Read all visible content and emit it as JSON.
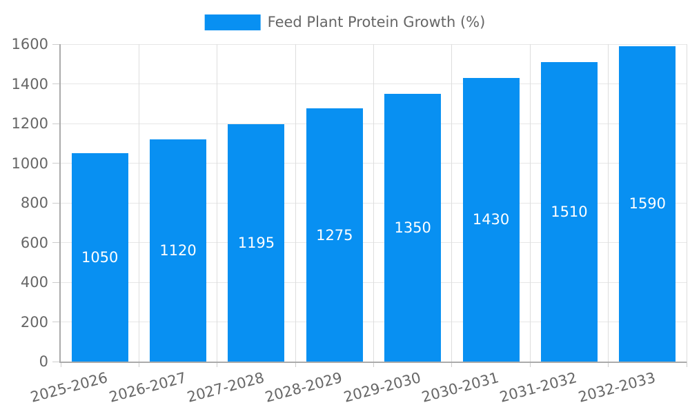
{
  "chart_data": {
    "type": "bar",
    "title": "",
    "legend": {
      "label": "Feed Plant Protein Growth (%)",
      "position": "top-center"
    },
    "categories": [
      "2025-2026",
      "2026-2027",
      "2027-2028",
      "2028-2029",
      "2029-2030",
      "2030-2031",
      "2031-2032",
      "2032-2033"
    ],
    "values": [
      1050,
      1120,
      1195,
      1275,
      1350,
      1430,
      1510,
      1590
    ],
    "value_labels_shown_inside_bars": true,
    "xlabel": "",
    "ylabel": "",
    "ylim": [
      0,
      1600
    ],
    "yticks": [
      0,
      200,
      400,
      600,
      800,
      1000,
      1200,
      1400,
      1600
    ],
    "grid": true,
    "x_label_rotation_deg": -15,
    "colors": {
      "bar": "#0890f2",
      "bar_value_text": "#ffffff",
      "axis_text": "#666666",
      "gridline_h": "#e6e6e6",
      "gridline_v": "#dddddd",
      "axis_line": "#aaaaaa",
      "tick": "#cccccc",
      "background": "#ffffff"
    }
  }
}
